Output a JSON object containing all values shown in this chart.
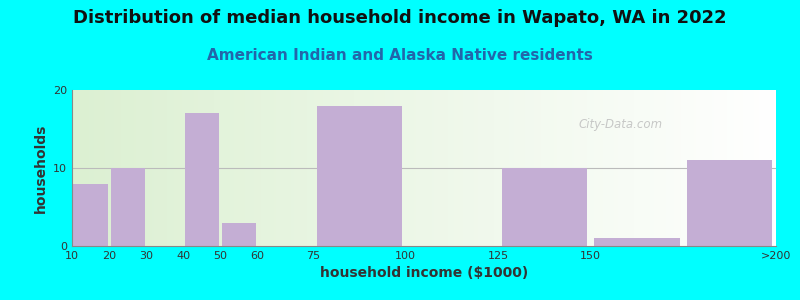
{
  "title": "Distribution of median household income in Wapato, WA in 2022",
  "subtitle": "American Indian and Alaska Native residents",
  "xlabel": "household income ($1000)",
  "ylabel": "households",
  "background_color": "#00FFFF",
  "bar_color": "#C4AED4",
  "watermark": "City-Data.com",
  "tick_positions": [
    10,
    20,
    30,
    40,
    50,
    60,
    75,
    100,
    125,
    150,
    175,
    200
  ],
  "tick_labels": [
    "10",
    "20",
    "30",
    "40",
    "50",
    "60",
    "75",
    "100",
    "125",
    "150",
    "",
    ">200"
  ],
  "bar_lefts": [
    10,
    20,
    30,
    40,
    50,
    60,
    75,
    100,
    125,
    150,
    175
  ],
  "bar_widths": [
    10,
    10,
    10,
    10,
    10,
    10,
    25,
    25,
    25,
    25,
    25
  ],
  "bar_heights": [
    8,
    10,
    0,
    17,
    3,
    0,
    18,
    0,
    10,
    1,
    11
  ],
  "ylim": [
    0,
    20
  ],
  "yticks": [
    0,
    10,
    20
  ],
  "xlim": [
    10,
    200
  ],
  "title_fontsize": 13,
  "subtitle_fontsize": 11,
  "axis_label_fontsize": 10,
  "tick_fontsize": 8
}
